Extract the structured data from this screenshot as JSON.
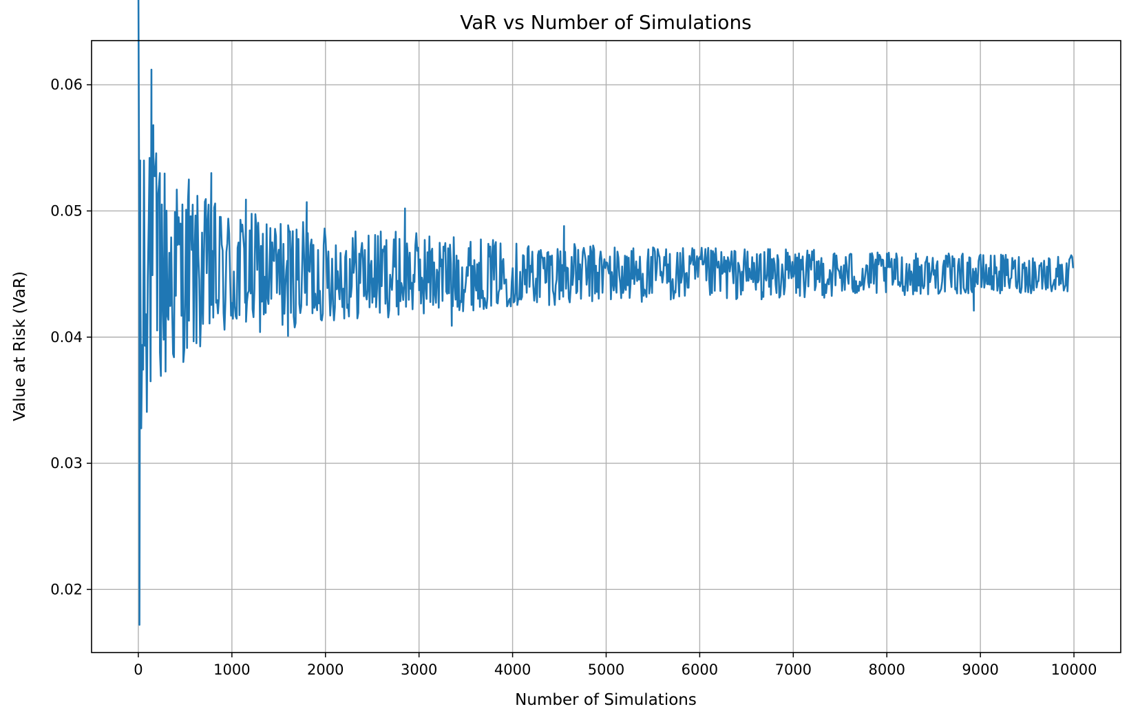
{
  "chart_data": {
    "type": "line",
    "title": "VaR vs Number of Simulations",
    "xlabel": "Number of Simulations",
    "ylabel": "Value at Risk (VaR)",
    "xlim": [
      -500,
      10500
    ],
    "ylim": [
      0.015,
      0.0635
    ],
    "xticks": [
      0,
      1000,
      2000,
      3000,
      4000,
      5000,
      6000,
      7000,
      8000,
      9000,
      10000
    ],
    "xtick_labels": [
      "0",
      "1000",
      "2000",
      "3000",
      "4000",
      "5000",
      "6000",
      "7000",
      "8000",
      "9000",
      "10000"
    ],
    "yticks": [
      0.02,
      0.03,
      0.04,
      0.05,
      0.06
    ],
    "ytick_labels": [
      "0.02",
      "0.03",
      "0.04",
      "0.05",
      "0.06"
    ],
    "grid": true,
    "legend": "none",
    "series": [
      {
        "color": "#1f77b4",
        "x_start": 1,
        "x_end": 10000,
        "x_step": 10,
        "center": 0.045,
        "envelope": [
          [
            1,
            0.0275
          ],
          [
            20,
            0.016
          ],
          [
            50,
            0.013
          ],
          [
            100,
            0.0115
          ],
          [
            150,
            0.011
          ],
          [
            200,
            0.01
          ],
          [
            300,
            0.009
          ],
          [
            500,
            0.0068
          ],
          [
            800,
            0.0058
          ],
          [
            1000,
            0.0052
          ],
          [
            1500,
            0.0045
          ],
          [
            2000,
            0.0038
          ],
          [
            3000,
            0.0033
          ],
          [
            4000,
            0.0026
          ],
          [
            5000,
            0.0023
          ],
          [
            6000,
            0.0021
          ],
          [
            7000,
            0.002
          ],
          [
            8000,
            0.0017
          ],
          [
            9000,
            0.0016
          ],
          [
            10000,
            0.0015
          ]
        ],
        "peaks": [
          [
            12,
            0.0172
          ],
          [
            20,
            0.054
          ],
          [
            60,
            0.054
          ],
          [
            120,
            0.0542
          ],
          [
            140,
            0.0612
          ],
          [
            160,
            0.0568
          ],
          [
            230,
            0.053
          ],
          [
            540,
            0.0525
          ],
          [
            780,
            0.053
          ],
          [
            1150,
            0.0509
          ],
          [
            1600,
            0.0401
          ],
          [
            1800,
            0.0507
          ],
          [
            2850,
            0.0502
          ],
          [
            3350,
            0.0409
          ],
          [
            4550,
            0.0488
          ],
          [
            8930,
            0.0421
          ]
        ]
      }
    ]
  }
}
